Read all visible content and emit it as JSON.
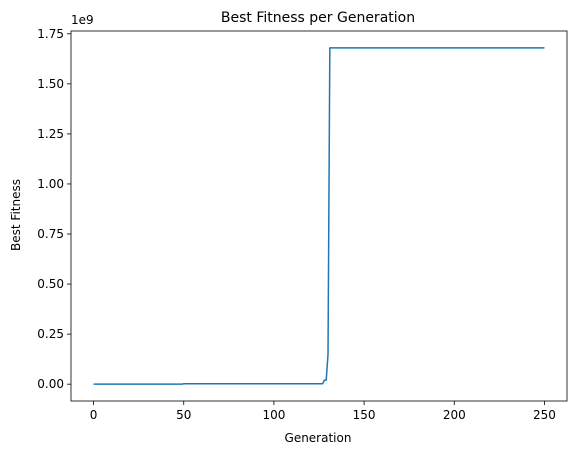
{
  "chart_data": {
    "type": "line",
    "title": "Best Fitness per Generation",
    "x_label": "Generation",
    "y_label": "Best Fitness",
    "y_offset_label": "1e9",
    "x": [
      0,
      49,
      50,
      127,
      128,
      129,
      130,
      131,
      250
    ],
    "series": [
      {
        "name": "Best Fitness",
        "color": "#1f77b4",
        "values": [
          0,
          0,
          2000000,
          2000000,
          20000000,
          20000000,
          150000000,
          1680000000,
          1680000000
        ]
      }
    ],
    "xlim": [
      -12.5,
      262.5
    ],
    "xticks": [
      0,
      50,
      100,
      150,
      200,
      250
    ],
    "ylim": [
      -84000000,
      1764000000
    ],
    "yticks": [
      {
        "value": 0,
        "label": "0.00"
      },
      {
        "value": 250000000,
        "label": "0.25"
      },
      {
        "value": 500000000,
        "label": "0.50"
      },
      {
        "value": 750000000,
        "label": "0.75"
      },
      {
        "value": 1000000000,
        "label": "1.00"
      },
      {
        "value": 1250000000,
        "label": "1.25"
      },
      {
        "value": 1500000000,
        "label": "1.50"
      },
      {
        "value": 1750000000,
        "label": "1.75"
      }
    ],
    "grid": false
  }
}
